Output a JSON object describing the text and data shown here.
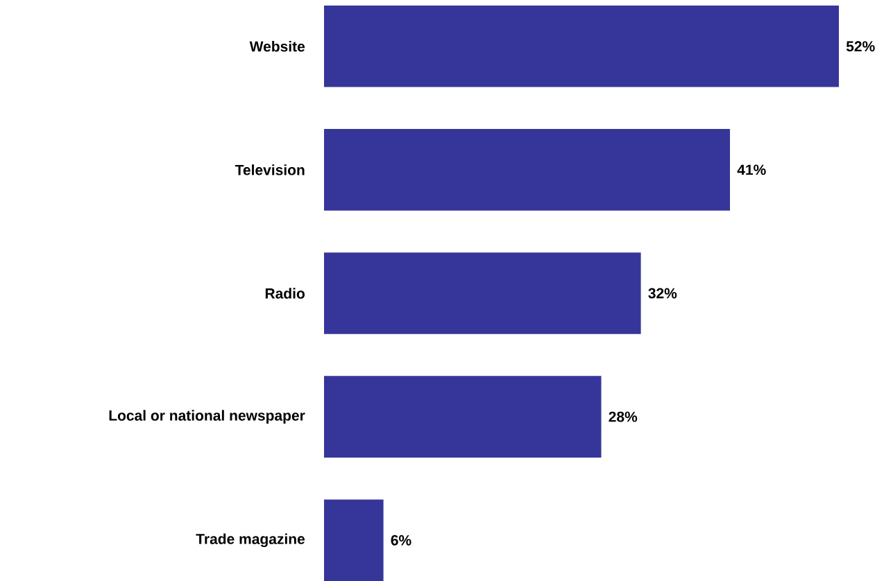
{
  "chart_data": {
    "type": "bar",
    "orientation": "horizontal",
    "categories": [
      "Website",
      "Television",
      "Radio",
      "Local or national newspaper",
      "Trade magazine"
    ],
    "values": [
      52,
      41,
      32,
      28,
      6
    ],
    "value_labels": [
      "52%",
      "41%",
      "32%",
      "28%",
      "6%"
    ],
    "color": "#35359a"
  }
}
